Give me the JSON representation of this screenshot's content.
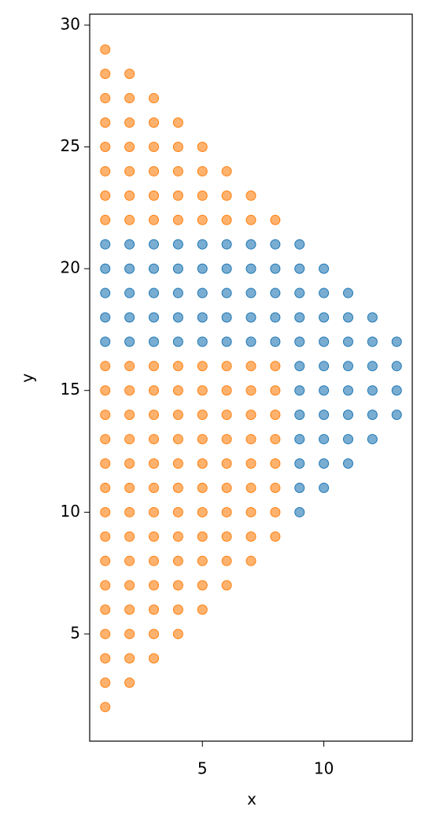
{
  "chart_data": {
    "type": "scatter",
    "xlabel": "x",
    "ylabel": "y",
    "xlim": [
      0.36,
      13.64
    ],
    "ylim": [
      0.6,
      30.45
    ],
    "xticks": [
      5,
      10
    ],
    "yticks": [
      5,
      10,
      15,
      20,
      25,
      30
    ],
    "series": [
      {
        "color": "#ff7f0e",
        "x": [
          1,
          1,
          1,
          1,
          1,
          1,
          1,
          1,
          1,
          1,
          1,
          1,
          1,
          1,
          1,
          1,
          1,
          1,
          1,
          1,
          1,
          1,
          1,
          2,
          2,
          2,
          2,
          2,
          2,
          2,
          2,
          2,
          2,
          2,
          2,
          2,
          2,
          2,
          2,
          2,
          2,
          2,
          2,
          2,
          3,
          3,
          3,
          3,
          3,
          3,
          3,
          3,
          3,
          3,
          3,
          3,
          3,
          3,
          3,
          3,
          3,
          3,
          3,
          4,
          4,
          4,
          4,
          4,
          4,
          4,
          4,
          4,
          4,
          4,
          4,
          4,
          4,
          4,
          4,
          4,
          5,
          5,
          5,
          5,
          5,
          5,
          5,
          5,
          5,
          5,
          5,
          5,
          5,
          5,
          5,
          6,
          6,
          6,
          6,
          6,
          6,
          6,
          6,
          6,
          6,
          6,
          6,
          6,
          7,
          7,
          7,
          7,
          7,
          7,
          7,
          7,
          7,
          7,
          7,
          8,
          8,
          8,
          8,
          8,
          8,
          8,
          8,
          8
        ],
        "values": [
          2,
          3,
          4,
          5,
          6,
          7,
          8,
          9,
          10,
          11,
          12,
          13,
          14,
          15,
          16,
          22,
          23,
          24,
          25,
          26,
          27,
          28,
          29,
          3,
          4,
          5,
          6,
          7,
          8,
          9,
          10,
          11,
          12,
          13,
          14,
          15,
          16,
          22,
          23,
          24,
          25,
          26,
          27,
          28,
          4,
          5,
          6,
          7,
          8,
          9,
          10,
          11,
          12,
          13,
          14,
          15,
          16,
          22,
          23,
          24,
          25,
          26,
          27,
          5,
          6,
          7,
          8,
          9,
          10,
          11,
          12,
          13,
          14,
          15,
          16,
          22,
          23,
          24,
          25,
          26,
          6,
          7,
          8,
          9,
          10,
          11,
          12,
          13,
          14,
          15,
          16,
          22,
          23,
          24,
          25,
          7,
          8,
          9,
          10,
          11,
          12,
          13,
          14,
          15,
          16,
          22,
          23,
          24,
          8,
          9,
          10,
          11,
          12,
          13,
          14,
          15,
          16,
          22,
          23,
          9,
          10,
          11,
          12,
          13,
          14,
          15,
          16,
          22
        ]
      },
      {
        "color": "#1f77b4",
        "x": [
          1,
          1,
          1,
          1,
          1,
          2,
          2,
          2,
          2,
          2,
          3,
          3,
          3,
          3,
          3,
          4,
          4,
          4,
          4,
          4,
          5,
          5,
          5,
          5,
          5,
          6,
          6,
          6,
          6,
          6,
          7,
          7,
          7,
          7,
          7,
          8,
          8,
          8,
          8,
          8,
          9,
          9,
          9,
          9,
          9,
          9,
          9,
          9,
          9,
          9,
          9,
          9,
          10,
          10,
          10,
          10,
          10,
          10,
          10,
          10,
          10,
          10,
          11,
          11,
          11,
          11,
          11,
          11,
          11,
          11,
          12,
          12,
          12,
          12,
          12,
          12,
          13,
          13,
          13,
          13
        ],
        "values": [
          17,
          18,
          19,
          20,
          21,
          17,
          18,
          19,
          20,
          21,
          17,
          18,
          19,
          20,
          21,
          17,
          18,
          19,
          20,
          21,
          17,
          18,
          19,
          20,
          21,
          17,
          18,
          19,
          20,
          21,
          17,
          18,
          19,
          20,
          21,
          17,
          18,
          19,
          20,
          21,
          10,
          11,
          12,
          13,
          14,
          15,
          16,
          17,
          18,
          19,
          20,
          21,
          11,
          12,
          13,
          14,
          15,
          16,
          17,
          18,
          19,
          20,
          12,
          13,
          14,
          15,
          16,
          17,
          18,
          19,
          13,
          14,
          15,
          16,
          17,
          18,
          14,
          15,
          16,
          17
        ]
      }
    ]
  }
}
